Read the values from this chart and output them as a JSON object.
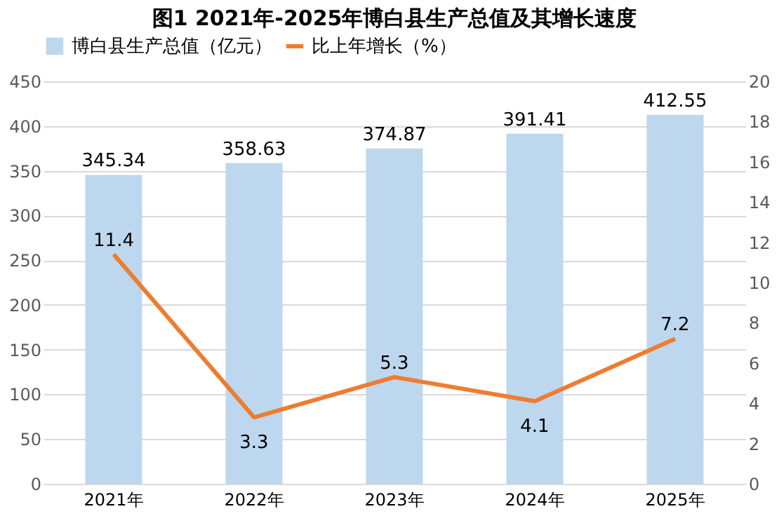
{
  "chart_data": {
    "type": "bar",
    "title": "图1 2021年-2025年博白县生产总值及其增长速度",
    "categories": [
      "2021年",
      "2022年",
      "2023年",
      "2024年",
      "2025年"
    ],
    "series": [
      {
        "name": "博白县生产总值（亿元）",
        "color": "#bdd7ee",
        "values": [
          345.34,
          358.63,
          374.87,
          391.41,
          412.55
        ]
      },
      {
        "name": "比上年增长（%）",
        "type": "line",
        "axis": "y2",
        "color": "#ed7d31",
        "values": [
          11.4,
          3.3,
          5.3,
          4.1,
          7.2
        ]
      }
    ],
    "ylim": [
      0,
      450
    ],
    "yticks": [
      0,
      50,
      100,
      150,
      200,
      250,
      300,
      350,
      400,
      450
    ],
    "y2lim": [
      0,
      20
    ],
    "y2ticks": [
      0,
      2,
      4,
      6,
      8,
      10,
      12,
      14,
      16,
      18,
      20
    ],
    "grid": "y",
    "legend": "top",
    "data_labels": true
  }
}
